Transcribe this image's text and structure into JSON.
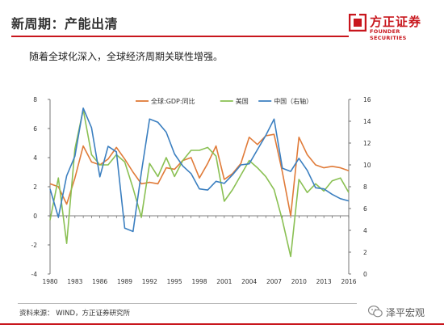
{
  "slide": {
    "title": "新周期：产能出清",
    "subtitle": "随着全球化深入，全球经济周期关联性增强。",
    "source": "资料来源： WIND，方正证券研究所",
    "watermark": "泽平宏观"
  },
  "brand": {
    "name": "方正证券",
    "sub": "FOUNDER SECURITIES",
    "color": "#c8161d"
  },
  "chart_data": {
    "type": "line",
    "title": "",
    "xlabel": "",
    "ylabel": "",
    "x": [
      1980,
      1981,
      1982,
      1983,
      1984,
      1985,
      1986,
      1987,
      1988,
      1989,
      1990,
      1991,
      1992,
      1993,
      1994,
      1995,
      1996,
      1997,
      1998,
      1999,
      2000,
      2001,
      2002,
      2003,
      2004,
      2005,
      2006,
      2007,
      2008,
      2009,
      2010,
      2011,
      2012,
      2013,
      2014,
      2015,
      2016
    ],
    "x_ticks": [
      1980,
      1983,
      1986,
      1989,
      1992,
      1995,
      1998,
      2001,
      2004,
      2007,
      2010,
      2013,
      2016
    ],
    "ylim_left": [
      -4,
      8
    ],
    "yticks_left": [
      -4,
      -2,
      0,
      2,
      4,
      6,
      8
    ],
    "ylim_right": [
      0,
      16
    ],
    "yticks_right": [
      0,
      2,
      4,
      6,
      8,
      10,
      12,
      14,
      16
    ],
    "legend_position": "top-center",
    "grid": false,
    "series": [
      {
        "name": "全球:GDP:同比",
        "axis": "left",
        "color": "#e07b39",
        "values": [
          2.2,
          2.0,
          0.8,
          2.6,
          4.8,
          3.7,
          3.5,
          3.9,
          4.7,
          3.9,
          3.0,
          2.2,
          2.3,
          2.2,
          3.3,
          3.2,
          3.8,
          4.0,
          2.6,
          3.6,
          4.8,
          2.5,
          2.9,
          3.6,
          5.4,
          4.9,
          5.5,
          5.6,
          3.0,
          0.0,
          5.4,
          4.2,
          3.5,
          3.3,
          3.4,
          3.3,
          3.1
        ]
      },
      {
        "name": "美国",
        "axis": "left",
        "color": "#8ac053",
        "values": [
          -0.3,
          2.6,
          -1.9,
          4.6,
          7.3,
          4.2,
          3.5,
          3.5,
          4.2,
          3.7,
          1.9,
          -0.1,
          3.6,
          2.7,
          4.0,
          2.7,
          3.8,
          4.5,
          4.5,
          4.7,
          4.1,
          1.0,
          1.8,
          2.8,
          3.8,
          3.3,
          2.7,
          1.8,
          -0.3,
          -2.8,
          2.5,
          1.6,
          2.2,
          1.7,
          2.4,
          2.6,
          1.6
        ]
      },
      {
        "name": "中国（右轴）",
        "axis": "right",
        "color": "#3b7fc0",
        "values": [
          7.8,
          5.2,
          9.0,
          10.8,
          15.2,
          13.4,
          8.9,
          11.7,
          11.2,
          4.2,
          3.9,
          9.3,
          14.2,
          13.9,
          13.0,
          11.0,
          9.9,
          9.2,
          7.8,
          7.7,
          8.5,
          8.3,
          9.1,
          10.0,
          10.1,
          11.4,
          12.7,
          14.2,
          9.7,
          9.4,
          10.6,
          9.5,
          7.9,
          7.8,
          7.3,
          6.9,
          6.7
        ]
      }
    ]
  }
}
